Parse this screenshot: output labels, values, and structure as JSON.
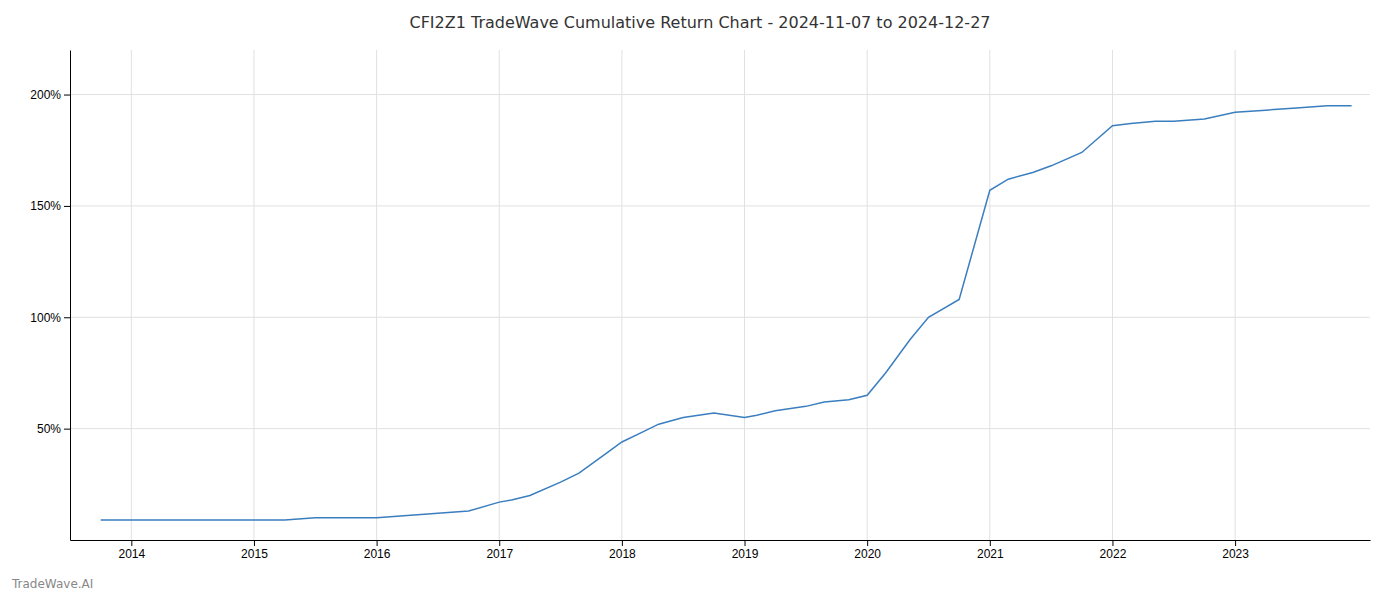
{
  "chart_data": {
    "type": "line",
    "title": "CFI2Z1 TradeWave Cumulative Return Chart - 2024-11-07 to 2024-12-27",
    "annotations": [
      "TradeWave.AI"
    ],
    "x": [
      2013.75,
      2014.0,
      2014.25,
      2014.5,
      2014.75,
      2015.0,
      2015.25,
      2015.5,
      2015.75,
      2016.0,
      2016.25,
      2016.5,
      2016.75,
      2017.0,
      2017.1,
      2017.25,
      2017.5,
      2017.65,
      2017.85,
      2018.0,
      2018.15,
      2018.3,
      2018.5,
      2018.75,
      2019.0,
      2019.1,
      2019.25,
      2019.5,
      2019.65,
      2019.85,
      2020.0,
      2020.15,
      2020.35,
      2020.5,
      2020.75,
      2021.0,
      2021.15,
      2021.35,
      2021.5,
      2021.75,
      2022.0,
      2022.15,
      2022.35,
      2022.5,
      2022.75,
      2023.0,
      2023.25,
      2023.5,
      2023.75,
      2023.95
    ],
    "values": [
      9,
      9,
      9,
      9,
      9,
      9,
      9,
      10,
      10,
      10,
      11,
      12,
      13,
      17,
      18,
      20,
      26,
      30,
      38,
      44,
      48,
      52,
      55,
      57,
      55,
      56,
      58,
      60,
      62,
      63,
      65,
      75,
      90,
      100,
      108,
      157,
      162,
      165,
      168,
      174,
      186,
      187,
      188,
      188,
      189,
      192,
      193,
      194,
      195,
      195
    ],
    "color": "#3a7ebf",
    "xlim": [
      2013.5,
      2024.1
    ],
    "xticks": [
      2014,
      2015,
      2016,
      2017,
      2018,
      2019,
      2020,
      2021,
      2022,
      2023
    ],
    "ylim": [
      0,
      220
    ],
    "yticks": [
      {
        "value": 50,
        "label": "50%"
      },
      {
        "value": 100,
        "label": "100%"
      },
      {
        "value": 150,
        "label": "150%"
      },
      {
        "value": 200,
        "label": "200%"
      }
    ],
    "grid": true
  }
}
